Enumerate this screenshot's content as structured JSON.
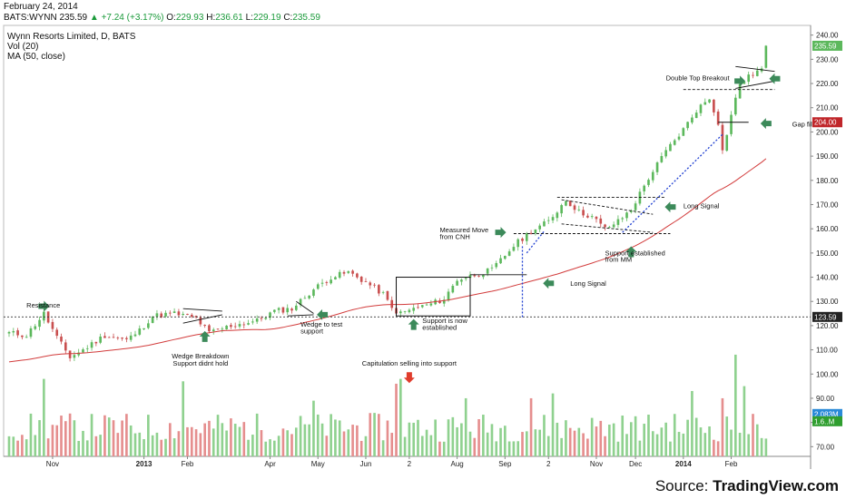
{
  "header": {
    "date": "February 24, 2014",
    "symbol": "BATS:WYNN",
    "last": "235.59",
    "change": "+7.24 (+3.17%)",
    "open_label": "O:",
    "open": "229.93",
    "high_label": "H:",
    "high": "236.61",
    "low_label": "L:",
    "low": "229.19",
    "close_label": "C:",
    "close": "235.59"
  },
  "legend": {
    "title": "Wynn Resorts Limited, D, BATS",
    "vol": "Vol (20)",
    "ma": "MA (50, close)"
  },
  "source": {
    "prefix": "Source: ",
    "brand": "TradingView.com"
  },
  "colors": {
    "up": "#5cb85c",
    "down": "#c94f4f",
    "vol_up": "#8fd18f",
    "vol_down": "#e58e8e",
    "ma": "#d23c3c",
    "arrow": "#3c8a5a",
    "arrow_red": "#e03c2c",
    "trend": "#1f3fd1",
    "last_badge": "#5cb85c",
    "level_204_badge": "#c0262a",
    "level_123_badge": "#222222",
    "vol_badge_1": "#2a8ad8",
    "vol_badge_2": "#2f9e2f"
  },
  "chart_data": {
    "type": "candlestick",
    "price_axis": {
      "ticks": [
        "240.00",
        "230.00",
        "220.00",
        "210.00",
        "200.00",
        "190.00",
        "180.00",
        "170.00",
        "160.00",
        "150.00",
        "140.00",
        "130.00",
        "120.00",
        "110.00",
        "100.00",
        "90.00",
        "80.00",
        "70.00"
      ],
      "ylim": [
        66,
        244
      ],
      "badges": [
        {
          "text": "235.59",
          "value": 235.59,
          "color_key": "last_badge"
        },
        {
          "text": "204.00",
          "value": 204.0,
          "color_key": "level_204_badge"
        },
        {
          "text": "123.59",
          "value": 123.59,
          "color_key": "level_123_badge"
        },
        {
          "text": "2.083M",
          "value": 83.5,
          "color_key": "vol_badge_1"
        },
        {
          "text": "1.6..M",
          "value": 80.5,
          "color_key": "vol_badge_2"
        }
      ]
    },
    "time_axis": {
      "labels": [
        {
          "text": "Nov",
          "bar": 10,
          "bold": false
        },
        {
          "text": "2013",
          "bar": 31,
          "bold": true
        },
        {
          "text": "Feb",
          "bar": 41,
          "bold": false
        },
        {
          "text": "Apr",
          "bar": 60,
          "bold": false
        },
        {
          "text": "May",
          "bar": 71,
          "bold": false
        },
        {
          "text": "Jun",
          "bar": 82,
          "bold": false
        },
        {
          "text": "2",
          "bar": 92,
          "bold": false
        },
        {
          "text": "Aug",
          "bar": 103,
          "bold": false
        },
        {
          "text": "Sep",
          "bar": 114,
          "bold": false
        },
        {
          "text": "2",
          "bar": 124,
          "bold": false
        },
        {
          "text": "Nov",
          "bar": 135,
          "bold": false
        },
        {
          "text": "Dec",
          "bar": 144,
          "bold": false
        },
        {
          "text": "2014",
          "bar": 155,
          "bold": true
        },
        {
          "text": "Feb",
          "bar": 166,
          "bold": false
        }
      ]
    },
    "anchors": [
      {
        "bar": 0,
        "value": 117
      },
      {
        "bar": 4,
        "value": 116
      },
      {
        "bar": 8,
        "value": 125
      },
      {
        "bar": 11,
        "value": 115
      },
      {
        "bar": 14,
        "value": 107
      },
      {
        "bar": 17,
        "value": 110
      },
      {
        "bar": 22,
        "value": 116
      },
      {
        "bar": 27,
        "value": 114
      },
      {
        "bar": 30,
        "value": 118
      },
      {
        "bar": 33,
        "value": 124
      },
      {
        "bar": 38,
        "value": 125
      },
      {
        "bar": 43,
        "value": 123
      },
      {
        "bar": 46,
        "value": 117
      },
      {
        "bar": 51,
        "value": 120
      },
      {
        "bar": 57,
        "value": 122
      },
      {
        "bar": 61,
        "value": 126
      },
      {
        "bar": 65,
        "value": 127
      },
      {
        "bar": 70,
        "value": 135
      },
      {
        "bar": 74,
        "value": 140
      },
      {
        "bar": 78,
        "value": 142
      },
      {
        "bar": 82,
        "value": 138
      },
      {
        "bar": 86,
        "value": 133
      },
      {
        "bar": 88,
        "value": 127
      },
      {
        "bar": 90,
        "value": 125
      },
      {
        "bar": 93,
        "value": 127
      },
      {
        "bar": 97,
        "value": 129
      },
      {
        "bar": 100,
        "value": 131
      },
      {
        "bar": 103,
        "value": 139
      },
      {
        "bar": 107,
        "value": 141
      },
      {
        "bar": 111,
        "value": 143
      },
      {
        "bar": 116,
        "value": 153
      },
      {
        "bar": 120,
        "value": 159
      },
      {
        "bar": 124,
        "value": 163
      },
      {
        "bar": 128,
        "value": 172
      },
      {
        "bar": 131,
        "value": 167
      },
      {
        "bar": 134,
        "value": 165
      },
      {
        "bar": 137,
        "value": 160
      },
      {
        "bar": 140,
        "value": 163
      },
      {
        "bar": 143,
        "value": 168
      },
      {
        "bar": 147,
        "value": 181
      },
      {
        "bar": 151,
        "value": 192
      },
      {
        "bar": 155,
        "value": 201
      },
      {
        "bar": 158,
        "value": 209
      },
      {
        "bar": 161,
        "value": 214
      },
      {
        "bar": 163,
        "value": 204
      },
      {
        "bar": 164,
        "value": 192
      },
      {
        "bar": 166,
        "value": 207
      },
      {
        "bar": 168,
        "value": 220
      },
      {
        "bar": 171,
        "value": 224
      },
      {
        "bar": 173,
        "value": 226
      },
      {
        "bar": 174,
        "value": 235.59
      }
    ],
    "volume_spikes": [
      {
        "bar": 8,
        "value": 98
      },
      {
        "bar": 40,
        "value": 97
      },
      {
        "bar": 89,
        "value": 96
      },
      {
        "bar": 90,
        "value": 98
      },
      {
        "bar": 157,
        "value": 93
      },
      {
        "bar": 164,
        "value": 90
      },
      {
        "bar": 167,
        "value": 108
      },
      {
        "bar": 169,
        "value": 95
      },
      {
        "bar": 120,
        "value": 90
      },
      {
        "bar": 125,
        "value": 92
      },
      {
        "bar": 70,
        "value": 89
      },
      {
        "bar": 105,
        "value": 90
      }
    ],
    "levels": [
      {
        "value": 123.59,
        "style": "dotted"
      }
    ],
    "annotations": [
      {
        "text": "Resistance",
        "bar": 4,
        "value": 127.5,
        "anchor": "start"
      },
      {
        "text": "Wedge Breakdown",
        "bar": 44,
        "value": 106.5,
        "anchor": "middle"
      },
      {
        "text": "Support didnt hold",
        "bar": 44,
        "value": 103.5,
        "anchor": "middle"
      },
      {
        "text": "Wedge to test",
        "bar": 67,
        "value": 119.5,
        "anchor": "start"
      },
      {
        "text": "support",
        "bar": 67,
        "value": 116.8,
        "anchor": "start"
      },
      {
        "text": "Support is now",
        "bar": 95,
        "value": 121,
        "anchor": "start"
      },
      {
        "text": "established",
        "bar": 95,
        "value": 118.2,
        "anchor": "start"
      },
      {
        "text": "Capitulation selling into support",
        "bar": 92,
        "value": 103.5,
        "anchor": "middle"
      },
      {
        "text": "Measured Move",
        "bar": 99,
        "value": 158.5,
        "anchor": "start"
      },
      {
        "text": "from CNH",
        "bar": 99,
        "value": 155.8,
        "anchor": "start"
      },
      {
        "text": "Long Signal",
        "bar": 129,
        "value": 136.5,
        "anchor": "start"
      },
      {
        "text": "Support established",
        "bar": 137,
        "value": 149,
        "anchor": "start"
      },
      {
        "text": "from MM",
        "bar": 137,
        "value": 146.3,
        "anchor": "start"
      },
      {
        "text": "Long Signal",
        "bar": 155,
        "value": 168.5,
        "anchor": "start"
      },
      {
        "text": "Double Top Breakout",
        "bar": 151,
        "value": 221.3,
        "anchor": "start"
      },
      {
        "text": "Gap fill",
        "bar": 180,
        "value": 202.3,
        "anchor": "start"
      }
    ],
    "arrows": [
      {
        "bar": 8,
        "value": 128,
        "dir": "right",
        "color_key": "arrow"
      },
      {
        "bar": 45,
        "value": 115.5,
        "dir": "up",
        "color_key": "arrow"
      },
      {
        "bar": 72,
        "value": 124.5,
        "dir": "left",
        "color_key": "arrow"
      },
      {
        "bar": 93,
        "value": 120.5,
        "dir": "up",
        "color_key": "arrow"
      },
      {
        "bar": 92,
        "value": 98.5,
        "dir": "down",
        "color_key": "arrow_red"
      },
      {
        "bar": 113,
        "value": 158.5,
        "dir": "right",
        "color_key": "arrow"
      },
      {
        "bar": 124,
        "value": 137.5,
        "dir": "left",
        "color_key": "arrow"
      },
      {
        "bar": 143,
        "value": 150.5,
        "dir": "up",
        "color_key": "arrow"
      },
      {
        "bar": 152,
        "value": 169,
        "dir": "left",
        "color_key": "arrow"
      },
      {
        "bar": 168,
        "value": 221,
        "dir": "right",
        "color_key": "arrow"
      },
      {
        "bar": 176,
        "value": 222,
        "dir": "left",
        "color_key": "arrow"
      },
      {
        "bar": 174,
        "value": 203.5,
        "dir": "left",
        "color_key": "arrow"
      }
    ],
    "drawings": [
      {
        "kind": "rect",
        "b1": 89,
        "v1": 140,
        "b2": 106,
        "v2": 124
      },
      {
        "kind": "line",
        "b1": 106,
        "v1": 141,
        "b2": 119,
        "v2": 141,
        "style": "solid"
      },
      {
        "kind": "line",
        "b1": 40,
        "v1": 127,
        "b2": 49,
        "v2": 126,
        "style": "solid"
      },
      {
        "kind": "line",
        "b1": 40,
        "v1": 121,
        "b2": 49,
        "v2": 124.5,
        "style": "solid"
      },
      {
        "kind": "line",
        "b1": 66,
        "v1": 130,
        "b2": 70,
        "v2": 125,
        "style": "solid"
      },
      {
        "kind": "line",
        "b1": 64,
        "v1": 124,
        "b2": 70,
        "v2": 124.5,
        "style": "solid"
      },
      {
        "kind": "line",
        "b1": 116,
        "v1": 158,
        "b2": 152,
        "v2": 158,
        "style": "dashed"
      },
      {
        "kind": "line",
        "b1": 126,
        "v1": 173,
        "b2": 151,
        "v2": 173,
        "style": "dashed"
      },
      {
        "kind": "line",
        "b1": 127,
        "v1": 172,
        "b2": 148,
        "v2": 166,
        "style": "dashed"
      },
      {
        "kind": "line",
        "b1": 127,
        "v1": 162,
        "b2": 148,
        "v2": 158.5,
        "style": "dashed"
      },
      {
        "kind": "line",
        "b1": 155,
        "v1": 217.5,
        "b2": 176,
        "v2": 217.5,
        "style": "dashed"
      },
      {
        "kind": "line",
        "b1": 167,
        "v1": 227,
        "b2": 176,
        "v2": 225,
        "style": "solid"
      },
      {
        "kind": "line",
        "b1": 167,
        "v1": 218,
        "b2": 176,
        "v2": 221,
        "style": "solid"
      },
      {
        "kind": "line",
        "b1": 163,
        "v1": 204,
        "b2": 170,
        "v2": 204,
        "style": "solid"
      },
      {
        "kind": "line",
        "b1": 118,
        "v1": 123.5,
        "b2": 118,
        "v2": 153,
        "style": "blue-dotted"
      },
      {
        "kind": "line",
        "b1": 119,
        "v1": 150,
        "b2": 123,
        "v2": 159,
        "style": "blue-dotted"
      },
      {
        "kind": "line",
        "b1": 141,
        "v1": 158.5,
        "b2": 164,
        "v2": 199,
        "style": "blue-dotted"
      }
    ]
  }
}
